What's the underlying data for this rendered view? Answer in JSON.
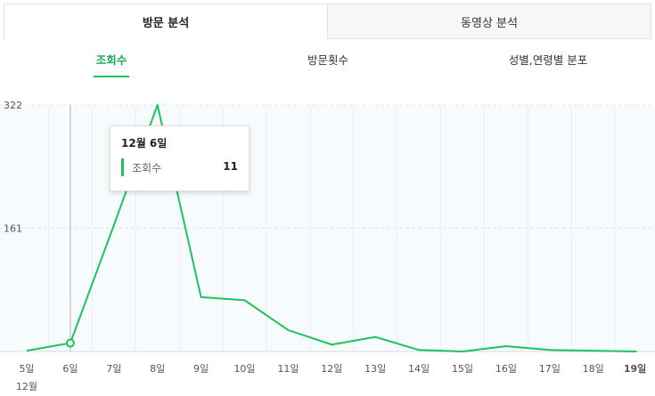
{
  "top_tabs": [
    {
      "label": "방문 분석"
    },
    {
      "label": "동영상 분석"
    }
  ],
  "sub_tabs": [
    {
      "label": "조회수"
    },
    {
      "label": "방문횟수"
    },
    {
      "label": "성별,연령별 분포"
    }
  ],
  "colors": {
    "accent": "#1ec35a",
    "accent_text": "#1aaa55",
    "grid": "#dbe7f3"
  },
  "tooltip": {
    "date": "12월 6일",
    "series_label": "조회수",
    "value": "11"
  },
  "chart_data": {
    "type": "line",
    "title": "",
    "xlabel": "",
    "ylabel": "",
    "month_label": "12월",
    "categories": [
      "5일",
      "6일",
      "7일",
      "8일",
      "9일",
      "10일",
      "11일",
      "12일",
      "13일",
      "14일",
      "15일",
      "16일",
      "17일",
      "18일",
      "19일"
    ],
    "highlight_category": "19일",
    "series": [
      {
        "name": "조회수",
        "values": [
          1,
          11,
          165,
          322,
          71,
          67,
          28,
          9,
          19,
          2,
          0,
          7,
          2,
          1,
          0
        ]
      }
    ],
    "yticks": [
      161,
      322
    ],
    "ylim": [
      0,
      322
    ],
    "hover_index": 1,
    "grid": true
  }
}
